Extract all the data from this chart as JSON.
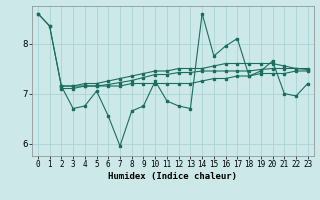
{
  "title": "",
  "xlabel": "Humidex (Indice chaleur)",
  "bg_color": "#cce8e8",
  "grid_color": "#aad4d4",
  "line_color": "#1a6e5e",
  "xlim": [
    -0.5,
    23.5
  ],
  "ylim": [
    5.75,
    8.75
  ],
  "yticks": [
    6,
    7,
    8
  ],
  "xticks": [
    0,
    1,
    2,
    3,
    4,
    5,
    6,
    7,
    8,
    9,
    10,
    11,
    12,
    13,
    14,
    15,
    16,
    17,
    18,
    19,
    20,
    21,
    22,
    23
  ],
  "series1_x": [
    0,
    1,
    2,
    3,
    4,
    5,
    6,
    7,
    8,
    9,
    10,
    11,
    12,
    13,
    14,
    15,
    16,
    17,
    18,
    19,
    20,
    21,
    22,
    23
  ],
  "series1_y": [
    8.6,
    8.35,
    7.15,
    6.7,
    6.75,
    7.05,
    6.55,
    5.95,
    6.65,
    6.75,
    7.25,
    6.85,
    6.75,
    6.7,
    8.6,
    7.75,
    7.95,
    8.1,
    7.35,
    7.45,
    7.65,
    7.0,
    6.95,
    7.2
  ],
  "series2_x": [
    0,
    1,
    2,
    3,
    4,
    5,
    6,
    7,
    8,
    9,
    10,
    11,
    12,
    13,
    14,
    15,
    16,
    17,
    18,
    19,
    20,
    21,
    22,
    23
  ],
  "series2_y": [
    8.6,
    8.35,
    7.15,
    7.15,
    7.15,
    7.15,
    7.15,
    7.15,
    7.2,
    7.2,
    7.2,
    7.2,
    7.2,
    7.2,
    7.25,
    7.3,
    7.3,
    7.35,
    7.35,
    7.4,
    7.4,
    7.4,
    7.45,
    7.45
  ],
  "series3_x": [
    2,
    3,
    4,
    5,
    6,
    7,
    8,
    9,
    10,
    11,
    12,
    13,
    14,
    15,
    16,
    17,
    18,
    19,
    20,
    21,
    22,
    23
  ],
  "series3_y": [
    7.15,
    7.15,
    7.2,
    7.2,
    7.25,
    7.3,
    7.35,
    7.4,
    7.45,
    7.45,
    7.5,
    7.5,
    7.5,
    7.55,
    7.6,
    7.6,
    7.6,
    7.6,
    7.6,
    7.55,
    7.5,
    7.5
  ],
  "series4_x": [
    2,
    3,
    4,
    5,
    6,
    7,
    8,
    9,
    10,
    11,
    12,
    13,
    14,
    15,
    16,
    17,
    18,
    19,
    20,
    21,
    22,
    23
  ],
  "series4_y": [
    7.1,
    7.1,
    7.15,
    7.15,
    7.18,
    7.22,
    7.26,
    7.32,
    7.38,
    7.38,
    7.42,
    7.42,
    7.45,
    7.45,
    7.45,
    7.45,
    7.45,
    7.48,
    7.5,
    7.5,
    7.5,
    7.48
  ]
}
